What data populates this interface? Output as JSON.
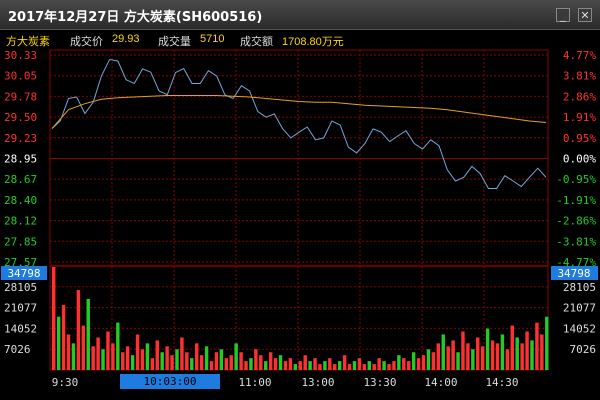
{
  "window": {
    "title": "2017年12月27日 方大炭素(SH600516)",
    "minimize_icon": "minimize-icon",
    "close_icon": "close-icon"
  },
  "info_bar": {
    "stock_name": "方大炭素",
    "price_label": "成交价",
    "price_value": "29.93",
    "volume_label": "成交量",
    "volume_value": "5710",
    "amount_label": "成交额",
    "amount_value": "1708.80万元"
  },
  "colors": {
    "price_line": "#6fa8dc",
    "avg_line": "#e6a118",
    "up": "#ff3030",
    "down": "#22cc22",
    "neutral": "#ffffff",
    "grid": "#8b0000",
    "highlight": "#1e7be0"
  },
  "price_axis": {
    "left_ticks": [
      "30.33",
      "30.05",
      "29.78",
      "29.50",
      "29.23",
      "28.95",
      "28.67",
      "28.40",
      "28.12",
      "27.85",
      "27.57"
    ],
    "right_ticks": [
      "4.77%",
      "3.81%",
      "2.86%",
      "1.91%",
      "0.95%",
      "0.00%",
      "-0.95%",
      "-1.91%",
      "-2.86%",
      "-3.81%",
      "-4.77%"
    ],
    "prev_close": "28.95"
  },
  "volume_axis": {
    "highlight_value": "34798",
    "ticks": [
      "28105",
      "21077",
      "14052",
      "7026"
    ]
  },
  "time_axis": {
    "labels": [
      "9:30",
      "11:00",
      "13:00",
      "13:30",
      "14:00",
      "14:30"
    ],
    "selected_time": "10:03:00"
  },
  "chart_data": {
    "type": "line",
    "xlabel": "",
    "ylabel": "",
    "ylim": [
      27.57,
      30.33
    ],
    "x": [
      "09:30",
      "09:35",
      "09:40",
      "09:45",
      "09:50",
      "09:55",
      "10:00",
      "10:05",
      "10:10",
      "10:15",
      "10:20",
      "10:25",
      "10:30",
      "10:40",
      "10:50",
      "11:00",
      "11:10",
      "11:20",
      "11:30/13:00",
      "13:10",
      "13:20",
      "13:30",
      "13:40",
      "13:50",
      "14:00",
      "14:10",
      "14:20",
      "14:30",
      "14:40",
      "14:50",
      "15:00"
    ],
    "series": [
      {
        "values": [
          29.35,
          29.75,
          29.55,
          30.05,
          30.25,
          29.95,
          30.1,
          29.8,
          30.15,
          29.95,
          30.05,
          29.75,
          29.85,
          29.5,
          29.35,
          29.3,
          29.2,
          29.45,
          29.1,
          29.15,
          29.3,
          29.25,
          29.15,
          29.2,
          28.8,
          28.7,
          28.75,
          28.55,
          28.65,
          28.7,
          28.7
        ]
      },
      {
        "values": [
          29.35,
          29.6,
          29.68,
          29.74,
          29.76,
          29.77,
          29.78,
          29.79,
          29.79,
          29.79,
          29.79,
          29.78,
          29.77,
          29.75,
          29.73,
          29.71,
          29.7,
          29.7,
          29.68,
          29.66,
          29.65,
          29.64,
          29.63,
          29.62,
          29.6,
          29.57,
          29.54,
          29.51,
          29.48,
          29.45,
          29.43
        ]
      }
    ]
  },
  "volume_data": {
    "type": "bar",
    "ylim": [
      0,
      35133
    ],
    "values": [
      34798,
      18000,
      22000,
      12000,
      9000,
      27000,
      15000,
      24000,
      8000,
      11000,
      7000,
      13000,
      9000,
      16000,
      6000,
      8000,
      5000,
      12000,
      7000,
      9000,
      4000,
      10000,
      6000,
      8000,
      5000,
      7000,
      11000,
      6000,
      4000,
      9000,
      5000,
      8000,
      3000,
      6000,
      7000,
      4000,
      5000,
      9000,
      6000,
      3000,
      4000,
      7000,
      5000,
      3000,
      6000,
      4000,
      5000,
      3000,
      4000,
      2000,
      3000,
      5000,
      3000,
      4000,
      2000,
      3000,
      4000,
      2000,
      3000,
      5000,
      2000,
      3000,
      4000,
      2000,
      3000,
      2000,
      4000,
      3000,
      2000,
      3000,
      5000,
      4000,
      3000,
      6000,
      4000,
      5000,
      7000,
      6000,
      9000,
      12000,
      8000,
      10000,
      6000,
      13000,
      9000,
      7000,
      11000,
      8000,
      14000,
      10000,
      9000,
      12000,
      7000,
      15000,
      11000,
      9000,
      13000,
      10000,
      16000,
      12000,
      18000
    ]
  }
}
